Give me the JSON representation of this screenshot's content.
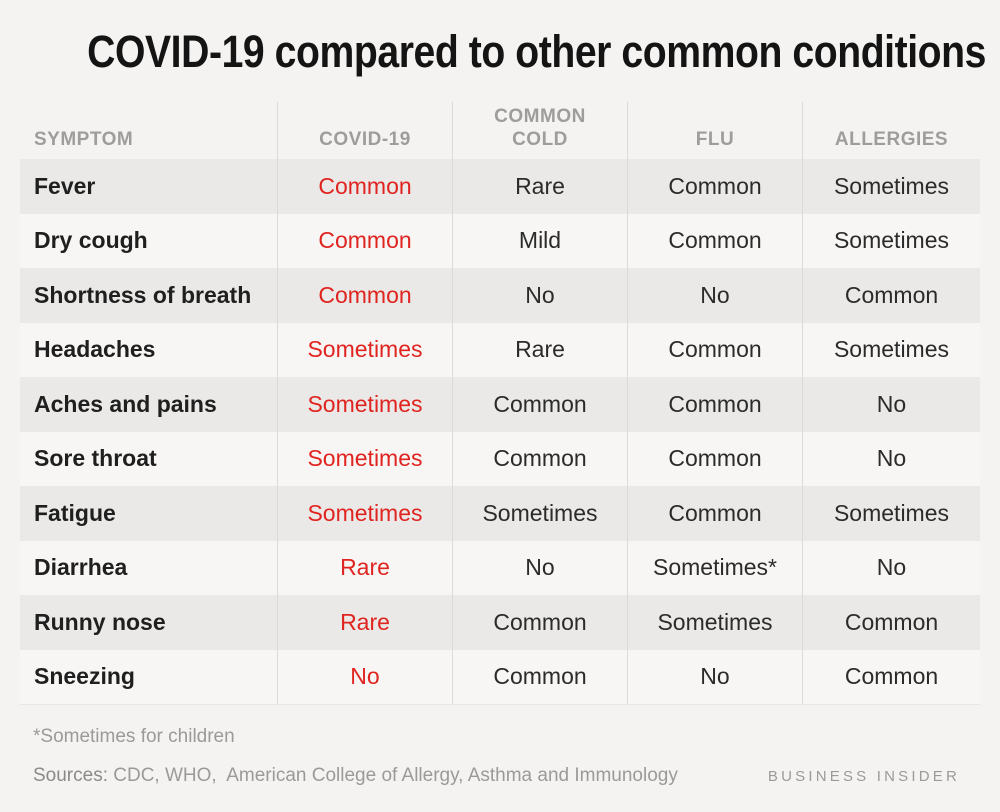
{
  "title": "COVID-19 compared to other common conditions",
  "colors": {
    "page_background": "#f4f3f1",
    "stripe_row": "#eae9e7",
    "plain_row": "#f7f6f4",
    "divider": "#dbdad8",
    "highlight_red": "#e02420",
    "header_gray": "#9e9d9c",
    "text_dark": "#1f1f1f"
  },
  "chart_data": {
    "type": "table",
    "title": "COVID-19 compared to other common conditions",
    "columns": [
      "SYMPTOM",
      "COVID-19",
      "COMMON COLD",
      "FLU",
      "ALLERGIES"
    ],
    "highlight_column": "COVID-19",
    "rows": [
      {
        "cells": [
          "Fever",
          "Common",
          "Rare",
          "Common",
          "Sometimes"
        ]
      },
      {
        "cells": [
          "Dry cough",
          "Common",
          "Mild",
          "Common",
          "Sometimes"
        ]
      },
      {
        "cells": [
          "Shortness of breath",
          "Common",
          "No",
          "No",
          "Common"
        ]
      },
      {
        "cells": [
          "Headaches",
          "Sometimes",
          "Rare",
          "Common",
          "Sometimes"
        ]
      },
      {
        "cells": [
          "Aches and pains",
          "Sometimes",
          "Common",
          "Common",
          "No"
        ]
      },
      {
        "cells": [
          "Sore throat",
          "Sometimes",
          "Common",
          "Common",
          "No"
        ]
      },
      {
        "cells": [
          "Fatigue",
          "Sometimes",
          "Sometimes",
          "Common",
          "Sometimes"
        ]
      },
      {
        "cells": [
          "Diarrhea",
          "Rare",
          "No",
          "Sometimes*",
          "No"
        ]
      },
      {
        "cells": [
          "Runny nose",
          "Rare",
          "Common",
          "Sometimes",
          "Common"
        ]
      },
      {
        "cells": [
          "Sneezing",
          "No",
          "Common",
          "No",
          "Common"
        ]
      }
    ],
    "footnote": "*Sometimes for children"
  },
  "footer": {
    "footnote": "*Sometimes for children",
    "sources_label": "Sources:",
    "sources_text": " CDC, WHO,  American College of Allergy, Asthma and Immunology",
    "brand": "BUSINESS INSIDER"
  }
}
